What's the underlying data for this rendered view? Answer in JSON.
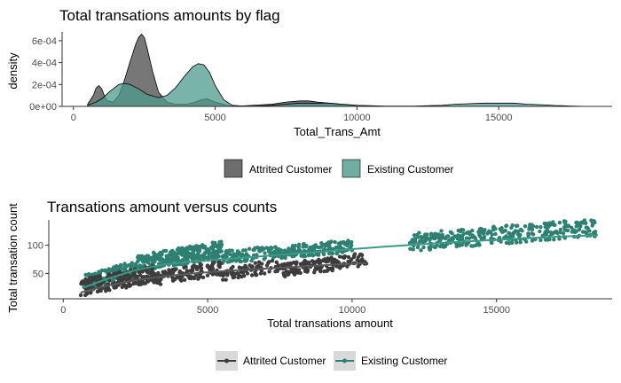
{
  "colors": {
    "attrited": "#3d3b3b",
    "existing": "#2e8072",
    "attrited_fill": "#555555",
    "existing_fill": "#4c9a8c"
  },
  "chart_data": [
    {
      "type": "area",
      "subtype": "density",
      "title": "Total transations amounts by flag",
      "xlabel": "Total_Trans_Amt",
      "ylabel": "density",
      "xlim": [
        500,
        18500
      ],
      "ylim": [
        0,
        0.00068
      ],
      "xticks": [
        0,
        5000,
        10000,
        15000
      ],
      "xtick_labels": [
        "0",
        "5000",
        "10000",
        "15000"
      ],
      "yticks": [
        0,
        0.0002,
        0.0004,
        0.0006
      ],
      "ytick_labels": [
        "0e+00",
        "2e-04",
        "4e-04",
        "6e-04"
      ],
      "grid": false,
      "legend_position": "bottom",
      "series": [
        {
          "name": "Attrited Customer",
          "x": [
            500,
            700,
            800,
            900,
            1000,
            1100,
            1200,
            1400,
            1600,
            1800,
            2000,
            2200,
            2300,
            2400,
            2500,
            2600,
            2800,
            3000,
            3300,
            3600,
            4000,
            4300,
            4500,
            4700,
            5000,
            5500,
            6000,
            7000,
            7500,
            8000,
            8300,
            8600,
            9000,
            9500,
            10000,
            10500,
            11000
          ],
          "y": [
            2e-05,
            0.0001,
            0.00017,
            0.00019,
            0.00016,
            9e-05,
            5e-05,
            4e-05,
            0.0001,
            0.00024,
            0.00041,
            0.00057,
            0.00063,
            0.00066,
            0.00063,
            0.00053,
            0.00031,
            0.00013,
            4e-05,
            2e-05,
            2e-05,
            4e-05,
            6e-05,
            7e-05,
            4e-05,
            5e-06,
            5e-06,
            2e-05,
            4e-05,
            5e-05,
            5e-05,
            4e-05,
            3e-05,
            1.5e-05,
            5e-06,
            2e-06,
            0.0
          ]
        },
        {
          "name": "Existing Customer",
          "x": [
            500,
            800,
            1000,
            1300,
            1600,
            1800,
            2000,
            2300,
            2600,
            3000,
            3300,
            3600,
            3900,
            4200,
            4400,
            4600,
            4800,
            5000,
            5300,
            5600,
            6000,
            6500,
            7000,
            7500,
            8000,
            8500,
            9000,
            9500,
            10000,
            11000,
            12000,
            13000,
            13500,
            14000,
            14500,
            15000,
            15500,
            16000,
            16500,
            17000,
            17500,
            18000,
            18500
          ],
          "y": [
            1e-05,
            4e-05,
            7e-05,
            0.00014,
            0.0002,
            0.00021,
            0.0002,
            0.00016,
            0.00011,
            8e-05,
            0.0001,
            0.00017,
            0.00027,
            0.00036,
            0.00039,
            0.00038,
            0.00031,
            0.00019,
            6e-05,
            1e-05,
            3e-06,
            3e-06,
            1e-05,
            2e-05,
            3e-05,
            3e-05,
            3e-05,
            2e-05,
            1e-05,
            3e-06,
            3e-06,
            1e-05,
            2e-05,
            2.5e-05,
            3e-05,
            3e-05,
            3e-05,
            2e-05,
            1.5e-05,
            8e-06,
            4e-06,
            1e-06,
            0.0
          ]
        }
      ]
    },
    {
      "type": "scatter",
      "title": "Transations amount versus counts",
      "xlabel": "Total transations amount",
      "ylabel": "Total transation count",
      "xlim": [
        -500,
        19000
      ],
      "ylim": [
        5,
        145
      ],
      "xticks": [
        0,
        5000,
        10000,
        15000
      ],
      "xtick_labels": [
        "0",
        "5000",
        "10000",
        "15000"
      ],
      "yticks": [
        50,
        100
      ],
      "ytick_labels": [
        "50",
        "100"
      ],
      "grid": false,
      "legend_position": "bottom",
      "series": [
        {
          "name": "Attrited Customer",
          "clusters": [
            {
              "x": [
                600,
                3200
              ],
              "y": [
                12,
                62
              ],
              "n": 200
            },
            {
              "x": [
                3200,
                5500
              ],
              "y": [
                28,
                72
              ],
              "n": 130
            },
            {
              "x": [
                5500,
                7500
              ],
              "y": [
                38,
                75
              ],
              "n": 80
            },
            {
              "x": [
                7500,
                10500
              ],
              "y": [
                45,
                85
              ],
              "n": 150
            }
          ],
          "smooth_x": [
            600,
            1500,
            2500,
            3500,
            4500,
            5500,
            6500,
            7500,
            8500,
            9500,
            10500
          ],
          "smooth_y": [
            16,
            28,
            38,
            45,
            50,
            54,
            57,
            60,
            63,
            66,
            68
          ]
        },
        {
          "name": "Existing Customer",
          "clusters": [
            {
              "x": [
                700,
                2500
              ],
              "y": [
                18,
                70
              ],
              "n": 160
            },
            {
              "x": [
                2500,
                5500
              ],
              "y": [
                55,
                105
              ],
              "n": 320
            },
            {
              "x": [
                5500,
                10000
              ],
              "y": [
                70,
                108
              ],
              "n": 260
            },
            {
              "x": [
                12000,
                18500
              ],
              "y": [
                92,
                145
              ],
              "n": 330
            }
          ],
          "smooth_x": [
            700,
            1500,
            2500,
            3500,
            4500,
            5500,
            6500,
            7500,
            8500,
            9500,
            11000,
            12500,
            14000,
            15500,
            17000,
            18500
          ],
          "smooth_y": [
            25,
            40,
            56,
            66,
            71,
            75,
            79,
            83,
            87,
            91,
            97,
            102,
            107,
            111,
            115,
            118
          ]
        }
      ]
    }
  ]
}
